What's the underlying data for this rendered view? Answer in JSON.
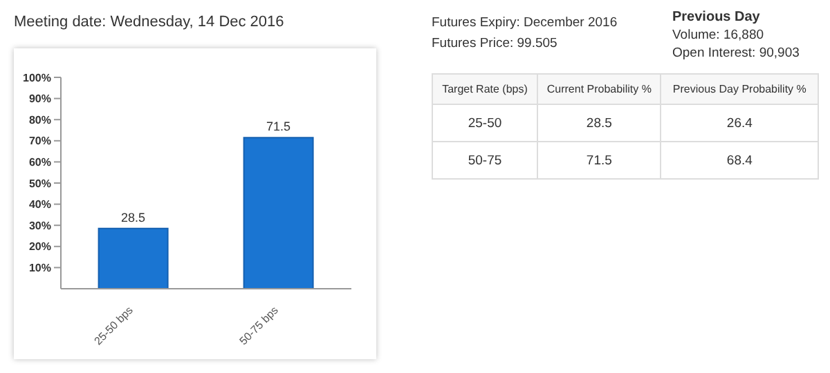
{
  "chart_data": [
    {
      "type": "bar",
      "title": "Meeting date: Wednesday, 14 Dec 2016",
      "categories": [
        "25-50 bps",
        "50-75 bps"
      ],
      "values": [
        28.5,
        71.5
      ],
      "color": "#1a75d2",
      "ylim": [
        0,
        100
      ],
      "yticks": [
        {
          "value": 10,
          "label": "10%"
        },
        {
          "value": 20,
          "label": "20%"
        },
        {
          "value": 30,
          "label": "30%"
        },
        {
          "value": 40,
          "label": "40%"
        },
        {
          "value": 50,
          "label": "50%"
        },
        {
          "value": 60,
          "label": "60%"
        },
        {
          "value": 70,
          "label": "70%"
        },
        {
          "value": 80,
          "label": "80%"
        },
        {
          "value": 90,
          "label": "90%"
        },
        {
          "value": 100,
          "label": "100%"
        }
      ],
      "data_labels": true,
      "grid": false,
      "legend": false
    },
    {
      "type": "other",
      "annotations": [
        "Futures Expiry: December 2016",
        "Futures Price: 99.505"
      ]
    },
    {
      "type": "other",
      "title": "Previous Day",
      "annotations": [
        "Volume: 16,880",
        "Open Interest: 90,903"
      ]
    },
    {
      "type": "other",
      "xlabel": "Target Rate (bps)",
      "categories": [
        "25-50",
        "50-75"
      ],
      "series": [
        {
          "name": "Current Probability %",
          "values": [
            28.5,
            71.5
          ]
        },
        {
          "name": "Previous Day Probability %",
          "values": [
            26.4,
            68.4
          ]
        }
      ],
      "data_labels": true
    }
  ]
}
